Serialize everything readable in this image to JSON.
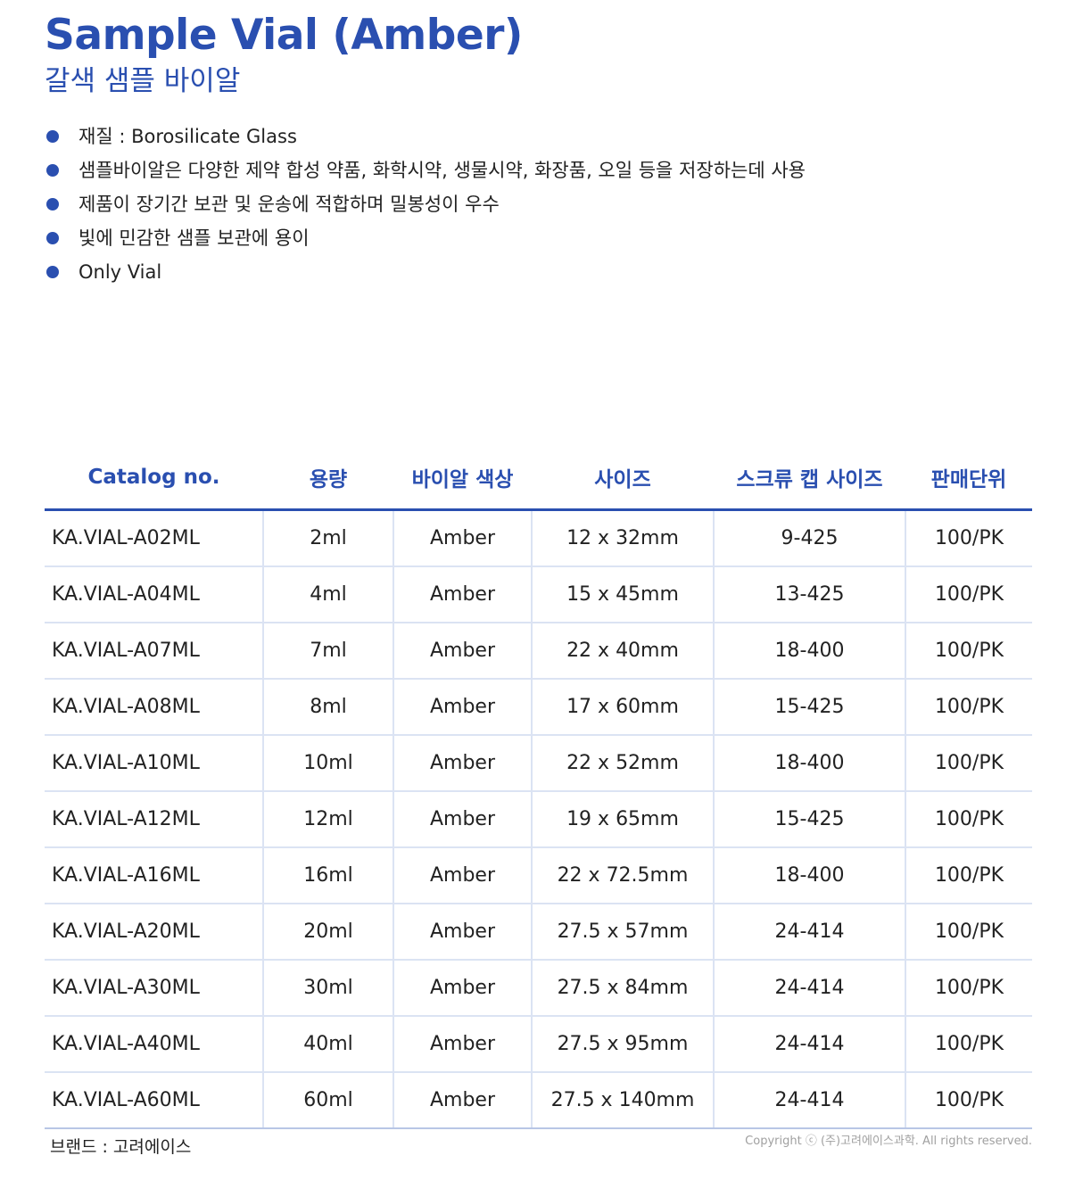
{
  "header": {
    "title": "Sample Vial (Amber)",
    "subtitle": "갈색 샘플 바이알"
  },
  "features": [
    "재질 : Borosilicate Glass",
    "샘플바이알은 다양한 제약 합성 약품, 화학시약, 생물시약, 화장품, 오일 등을 저장하는데 사용",
    "제품이 장기간 보관 및 운송에 적합하며 밀봉성이 우수",
    "빛에 민감한 샘플 보관에 용이",
    "Only Vial"
  ],
  "table": {
    "columns": [
      "Catalog no.",
      "용량",
      "바이알 색상",
      "사이즈",
      "스크류 캡 사이즈",
      "판매단위"
    ],
    "rows": [
      [
        "KA.VIAL-A02ML",
        "2ml",
        "Amber",
        "12 x 32mm",
        "9-425",
        "100/PK"
      ],
      [
        "KA.VIAL-A04ML",
        "4ml",
        "Amber",
        "15 x 45mm",
        "13-425",
        "100/PK"
      ],
      [
        "KA.VIAL-A07ML",
        "7ml",
        "Amber",
        "22 x 40mm",
        "18-400",
        "100/PK"
      ],
      [
        "KA.VIAL-A08ML",
        "8ml",
        "Amber",
        "17 x 60mm",
        "15-425",
        "100/PK"
      ],
      [
        "KA.VIAL-A10ML",
        "10ml",
        "Amber",
        "22 x 52mm",
        "18-400",
        "100/PK"
      ],
      [
        "KA.VIAL-A12ML",
        "12ml",
        "Amber",
        "19 x 65mm",
        "15-425",
        "100/PK"
      ],
      [
        "KA.VIAL-A16ML",
        "16ml",
        "Amber",
        "22 x 72.5mm",
        "18-400",
        "100/PK"
      ],
      [
        "KA.VIAL-A20ML",
        "20ml",
        "Amber",
        "27.5 x 57mm",
        "24-414",
        "100/PK"
      ],
      [
        "KA.VIAL-A30ML",
        "30ml",
        "Amber",
        "27.5 x 84mm",
        "24-414",
        "100/PK"
      ],
      [
        "KA.VIAL-A40ML",
        "40ml",
        "Amber",
        "27.5 x 95mm",
        "24-414",
        "100/PK"
      ],
      [
        "KA.VIAL-A60ML",
        "60ml",
        "Amber",
        "27.5 x 140mm",
        "24-414",
        "100/PK"
      ]
    ]
  },
  "footer": {
    "brand": "브랜드 : 고려에이스",
    "copyright": "Copyright ⓒ (주)고려에이스과학. All rights reserved."
  },
  "colors": {
    "accent": "#2a4fb0",
    "row_divider": "#dbe3f3"
  }
}
